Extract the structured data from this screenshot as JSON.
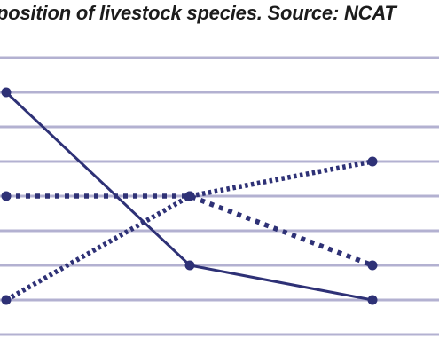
{
  "chart_data": {
    "type": "line",
    "title": "position of livestock species. Source: NCAT",
    "x": [
      0,
      1,
      2
    ],
    "ylim": [
      0,
      8
    ],
    "grid": true,
    "colors": {
      "series": "#2e3176",
      "grid": "#b3b1d1"
    },
    "series": [
      {
        "style": "solid",
        "values": [
          7,
          2,
          1
        ]
      },
      {
        "style": "dotted",
        "values": [
          4,
          4,
          2
        ]
      },
      {
        "style": "dashed-thick",
        "values": [
          1,
          4,
          5
        ]
      }
    ]
  }
}
